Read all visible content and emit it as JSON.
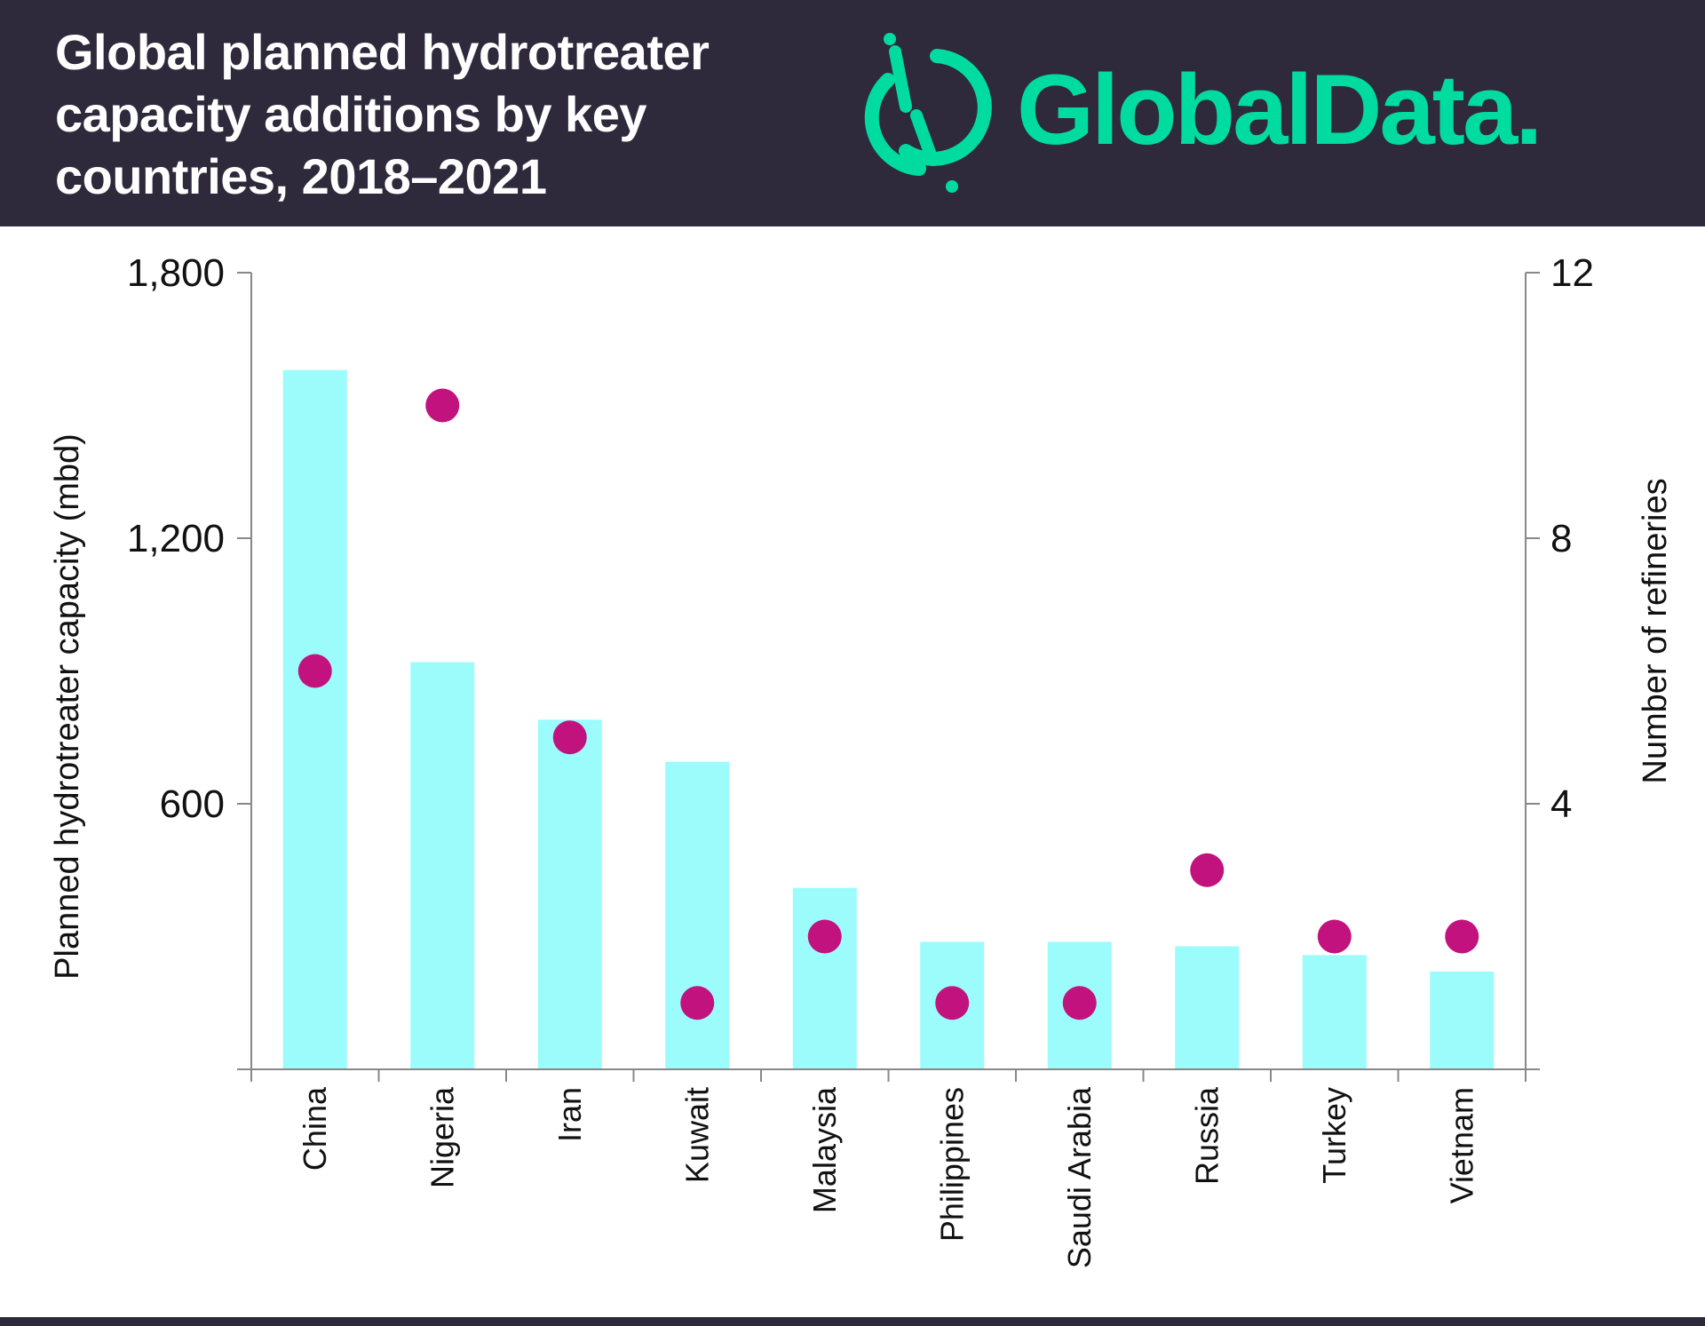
{
  "header": {
    "title": "Global planned hydrotreater capacity additions by key countries, 2018–2021"
  },
  "logo": {
    "text": "GlobalData.",
    "color": "#00dba0"
  },
  "chart_data": {
    "type": "bar",
    "title": "Global planned hydrotreater capacity additions by key countries, 2018–2021",
    "categories": [
      "China",
      "Nigeria",
      "Iran",
      "Kuwait",
      "Malaysia",
      "Philippines",
      "Saudi Arabia",
      "Russia",
      "Turkey",
      "Vietnam"
    ],
    "series": [
      {
        "axis": "left",
        "type": "bar",
        "color": "#9cfbfb",
        "values": [
          1580,
          920,
          790,
          695,
          410,
          288,
          288,
          278,
          258,
          221
        ]
      },
      {
        "axis": "right",
        "type": "scatter",
        "color": "#c2127e",
        "values": [
          6,
          10,
          5,
          1,
          2,
          1,
          1,
          3,
          2,
          2
        ]
      }
    ],
    "ylabel": "Planned hydrotreater capacity (mbd)",
    "y2label": "Number of refineries",
    "ylim": [
      0,
      1800
    ],
    "y2lim": [
      0,
      12
    ],
    "yticks": [
      "1,800",
      "1,200",
      "600"
    ],
    "yticks_values": [
      1800,
      1200,
      600
    ],
    "y2ticks": [
      "12",
      "8",
      "4"
    ],
    "y2ticks_values": [
      12,
      8,
      4
    ],
    "grid": false
  }
}
